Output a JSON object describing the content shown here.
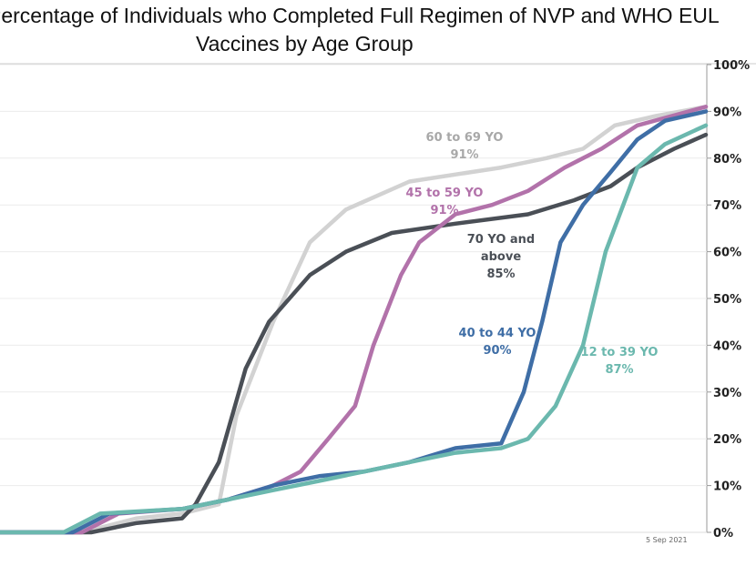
{
  "chart_data": {
    "type": "line",
    "title_line1": "Percentage of Individuals who Completed Full Regimen of NVP and WHO EUL",
    "title_line2": "Vaccines by Age Group",
    "xlabel": "",
    "ylabel": "",
    "ylim": [
      0,
      100
    ],
    "y_ticks": [
      "0%",
      "10%",
      "20%",
      "30%",
      "40%",
      "50%",
      "60%",
      "70%",
      "80%",
      "90%",
      "100%"
    ],
    "x_range": [
      0,
      100
    ],
    "grid": true,
    "date_label": "5 Sep 2021",
    "series": [
      {
        "name": "60 to 69 YO",
        "label_line1": "60 to 69 YO",
        "label_line2": "91%",
        "color": "#d2d2d2",
        "points": [
          [
            0,
            0
          ],
          [
            11.6,
            0
          ],
          [
            19.4,
            3
          ],
          [
            25.8,
            4
          ],
          [
            31,
            6
          ],
          [
            33.5,
            25
          ],
          [
            38.7,
            45
          ],
          [
            43.9,
            62
          ],
          [
            49,
            69
          ],
          [
            58,
            75
          ],
          [
            71,
            78
          ],
          [
            77.4,
            80
          ],
          [
            82.6,
            82
          ],
          [
            87.1,
            87
          ],
          [
            92.9,
            89
          ],
          [
            100,
            91
          ]
        ]
      },
      {
        "name": "70 YO and above",
        "label_line1": "70 YO and",
        "label_line2": "above",
        "label_line3": "85%",
        "color": "#4a4f56",
        "points": [
          [
            0,
            0
          ],
          [
            12.9,
            0
          ],
          [
            19.4,
            2
          ],
          [
            25.8,
            3
          ],
          [
            27.7,
            6
          ],
          [
            31,
            15
          ],
          [
            34.8,
            35
          ],
          [
            38.1,
            45
          ],
          [
            43.9,
            55
          ],
          [
            49,
            60
          ],
          [
            55.5,
            64
          ],
          [
            64.5,
            66
          ],
          [
            74.8,
            68
          ],
          [
            81.3,
            71
          ],
          [
            86.5,
            74
          ],
          [
            90.3,
            78
          ],
          [
            95.5,
            82
          ],
          [
            100,
            85
          ]
        ]
      },
      {
        "name": "45 to 59 YO",
        "label_line1": "45 to 59 YO",
        "label_line2": "91%",
        "color": "#b272aa",
        "points": [
          [
            0,
            0
          ],
          [
            11.6,
            0
          ],
          [
            16.8,
            4
          ],
          [
            25.8,
            5
          ],
          [
            32.3,
            7
          ],
          [
            38.7,
            10
          ],
          [
            42.6,
            13
          ],
          [
            46.5,
            20
          ],
          [
            50.3,
            27
          ],
          [
            52.9,
            40
          ],
          [
            56.8,
            55
          ],
          [
            59.4,
            62
          ],
          [
            64.5,
            68
          ],
          [
            69.7,
            70
          ],
          [
            74.8,
            73
          ],
          [
            80,
            78
          ],
          [
            85.2,
            82
          ],
          [
            90.3,
            87
          ],
          [
            100,
            91
          ]
        ]
      },
      {
        "name": "40 to 44 YO",
        "label_line1": "40 to 44 YO",
        "label_line2": "90%",
        "color": "#3f6ea6",
        "points": [
          [
            0,
            0
          ],
          [
            10.3,
            0
          ],
          [
            15.5,
            4
          ],
          [
            25.8,
            5
          ],
          [
            32.3,
            7
          ],
          [
            38.7,
            10
          ],
          [
            45.2,
            12
          ],
          [
            51.6,
            13
          ],
          [
            58,
            15
          ],
          [
            64.5,
            18
          ],
          [
            71,
            19
          ],
          [
            74.2,
            30
          ],
          [
            76.8,
            45
          ],
          [
            79.4,
            62
          ],
          [
            82.6,
            70
          ],
          [
            86.5,
            77
          ],
          [
            90.3,
            84
          ],
          [
            94.2,
            88
          ],
          [
            100,
            90
          ]
        ]
      },
      {
        "name": "12 to 39 YO",
        "label_line1": "12 to 39 YO",
        "label_line2": "87%",
        "color": "#6bb8ae",
        "points": [
          [
            0,
            0
          ],
          [
            9,
            0
          ],
          [
            14.2,
            4
          ],
          [
            25.8,
            5
          ],
          [
            32.3,
            7
          ],
          [
            38.7,
            9
          ],
          [
            45.2,
            11
          ],
          [
            51.6,
            13
          ],
          [
            58,
            15
          ],
          [
            64.5,
            17
          ],
          [
            71,
            18
          ],
          [
            74.8,
            20
          ],
          [
            78.7,
            27
          ],
          [
            82.6,
            40
          ],
          [
            85.8,
            60
          ],
          [
            90.3,
            78
          ],
          [
            94.2,
            83
          ],
          [
            100,
            87
          ]
        ]
      }
    ]
  }
}
